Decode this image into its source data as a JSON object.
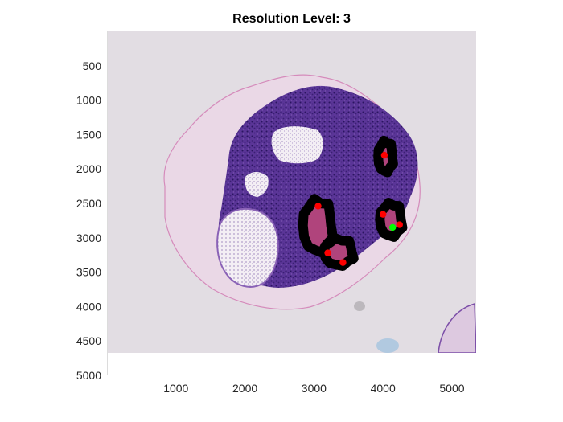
{
  "figure": {
    "title": "Resolution Level: 3"
  },
  "chart_data": {
    "type": "scatter",
    "title": "Resolution Level: 3",
    "xlabel": "",
    "ylabel": "",
    "xlim": [
      0,
      5350
    ],
    "ylim": [
      5000,
      0
    ],
    "image_extent": {
      "x": [
        0,
        5350
      ],
      "y": [
        0,
        4700
      ]
    },
    "x_ticks": [
      "1000",
      "2000",
      "3000",
      "4000",
      "5000"
    ],
    "y_ticks": [
      "500",
      "1000",
      "1500",
      "2000",
      "2500",
      "3000",
      "3500",
      "4000",
      "4500",
      "5000"
    ],
    "grid": false,
    "legend": "none",
    "series": [
      {
        "color": "#ff0000",
        "points": [
          {
            "x": 4020,
            "y": 1800
          },
          {
            "x": 3060,
            "y": 2540
          },
          {
            "x": 4000,
            "y": 2660
          },
          {
            "x": 4240,
            "y": 2810
          },
          {
            "x": 3200,
            "y": 3220
          },
          {
            "x": 3420,
            "y": 3360
          }
        ]
      },
      {
        "color": "#00ff00",
        "points": [
          {
            "x": 4140,
            "y": 2850
          }
        ]
      }
    ],
    "regions": [
      {
        "color": "#000000",
        "x": [
          3920,
          4160
        ],
        "y": [
          1580,
          2060
        ]
      },
      {
        "color": "#000000",
        "x": [
          3940,
          4300
        ],
        "y": [
          2480,
          3000
        ]
      },
      {
        "color": "#000000",
        "x": [
          2820,
          3300
        ],
        "y": [
          2420,
          3230
        ]
      },
      {
        "color": "#000000",
        "x": [
          3130,
          3600
        ],
        "y": [
          3000,
          3420
        ]
      }
    ],
    "colors": {
      "tissue_background": "#e2dde3",
      "tissue_purple": "#4a2a86",
      "stroma_pink": "#cf6aa6",
      "marker_red": "#ff0000",
      "marker_green": "#00ff00",
      "outline": "#000000"
    }
  }
}
